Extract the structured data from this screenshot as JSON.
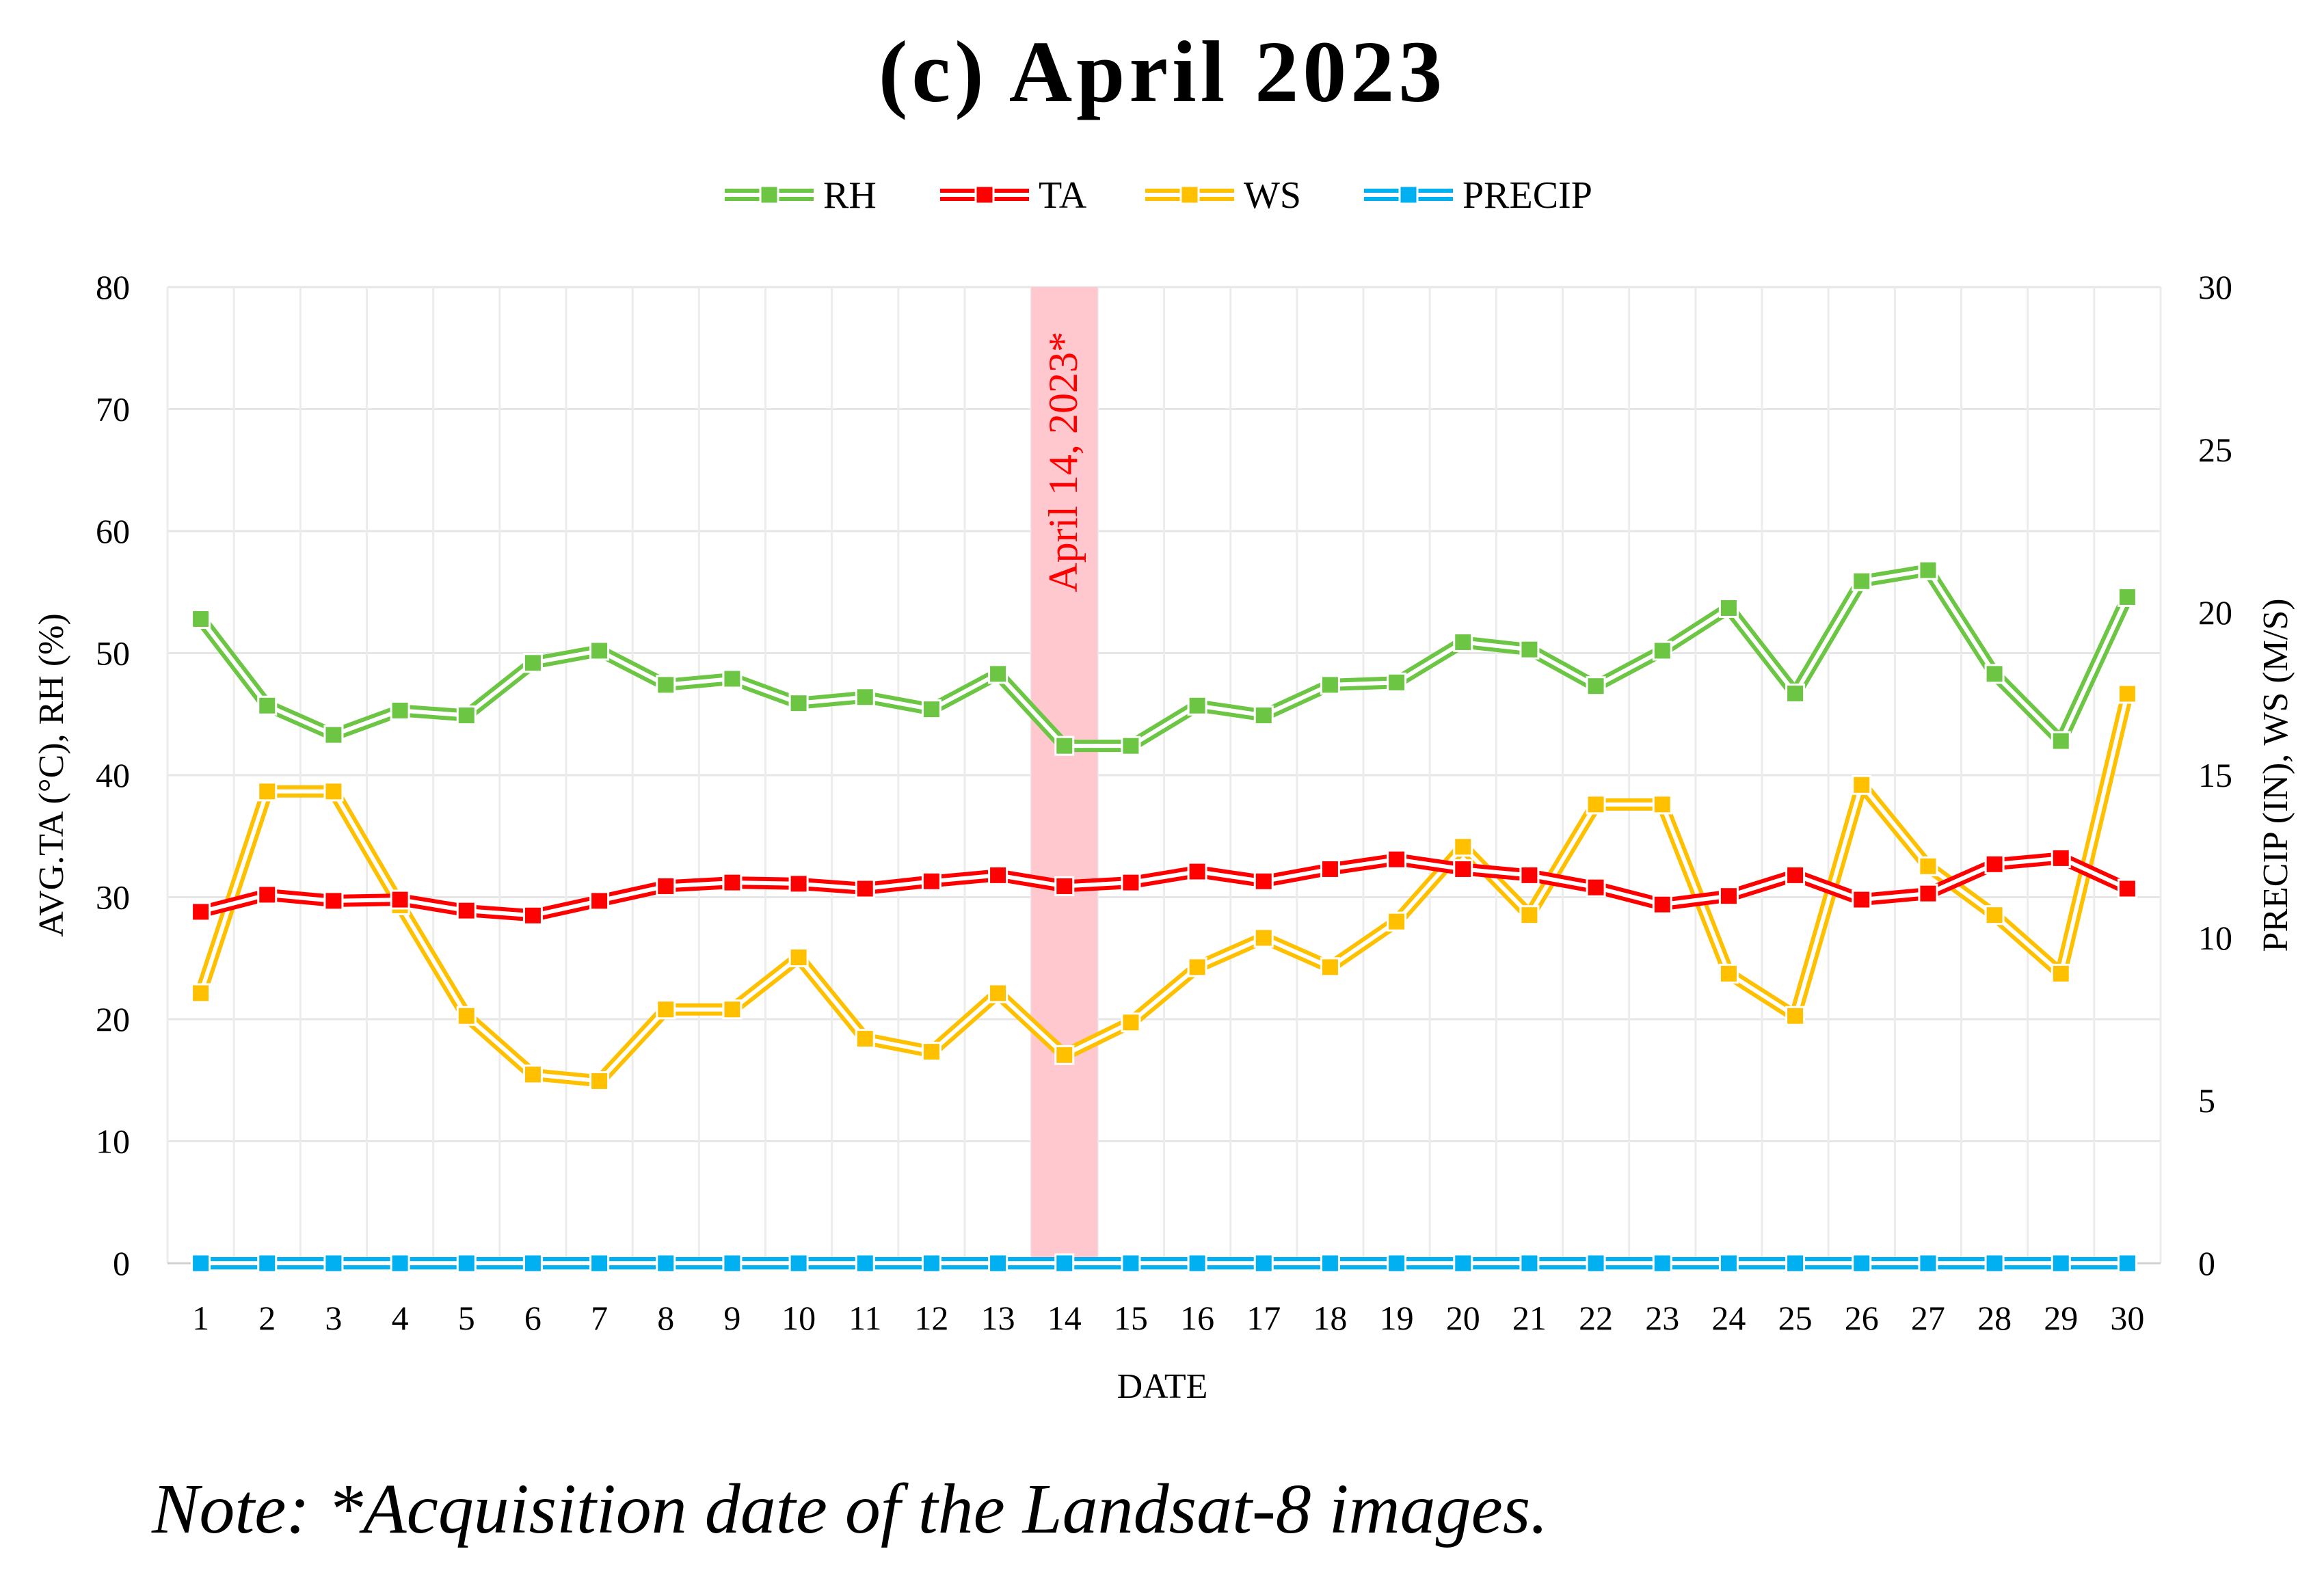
{
  "chart_data": {
    "type": "line",
    "title": "(c) April 2023",
    "xlabel": "DATE",
    "ylabel_left": "AVG.TA (°C), RH (%)",
    "ylabel_right": "PRECIP (IN),  WS (M/S)",
    "ylim_left": [
      0,
      80
    ],
    "ylim_right": [
      0,
      30
    ],
    "yticks_left": [
      0,
      10,
      20,
      30,
      40,
      50,
      60,
      70,
      80
    ],
    "yticks_right": [
      0,
      5,
      10,
      15,
      20,
      25,
      30
    ],
    "categories": [
      1,
      2,
      3,
      4,
      5,
      6,
      7,
      8,
      9,
      10,
      11,
      12,
      13,
      14,
      15,
      16,
      17,
      18,
      19,
      20,
      21,
      22,
      23,
      24,
      25,
      26,
      27,
      28,
      29,
      30
    ],
    "grid": true,
    "legend_position": "top",
    "series": [
      {
        "name": "RH",
        "axis": "left",
        "color": "#6cc644",
        "values": [
          52.8,
          45.7,
          43.3,
          45.3,
          44.9,
          49.2,
          50.2,
          47.4,
          47.9,
          45.9,
          46.4,
          45.4,
          48.3,
          42.4,
          42.4,
          45.7,
          44.9,
          47.4,
          47.6,
          50.9,
          50.3,
          47.3,
          50.2,
          53.7,
          46.7,
          55.9,
          56.8,
          48.3,
          42.8,
          54.6
        ]
      },
      {
        "name": "TA",
        "axis": "left",
        "color": "#ff0000",
        "values": [
          28.8,
          30.2,
          29.7,
          29.8,
          28.9,
          28.5,
          29.7,
          30.9,
          31.2,
          31.1,
          30.7,
          31.3,
          31.8,
          30.9,
          31.2,
          32.1,
          31.3,
          32.3,
          33.1,
          32.3,
          31.8,
          30.8,
          29.4,
          30.1,
          31.8,
          29.8,
          30.3,
          32.7,
          33.2,
          30.7
        ]
      },
      {
        "name": "WS",
        "axis": "right",
        "color": "#ffc000",
        "values": [
          8.3,
          14.5,
          14.5,
          11.0,
          7.6,
          5.8,
          5.6,
          7.8,
          7.8,
          9.4,
          6.9,
          6.5,
          8.3,
          6.4,
          7.4,
          9.1,
          10.0,
          9.1,
          10.5,
          12.8,
          10.7,
          14.1,
          14.1,
          8.9,
          7.6,
          14.7,
          12.2,
          10.7,
          8.9,
          17.5
        ]
      },
      {
        "name": "PRECIP",
        "axis": "right",
        "color": "#00b0f0",
        "values": [
          0,
          0,
          0,
          0,
          0,
          0,
          0,
          0,
          0,
          0,
          0,
          0,
          0,
          0,
          0,
          0,
          0,
          0,
          0,
          0,
          0,
          0,
          0,
          0,
          0,
          0,
          0,
          0,
          0,
          0
        ]
      }
    ],
    "highlight": {
      "category": 14,
      "label": "April 14, 2023*",
      "color": "#ffc7ce"
    },
    "note": "Note: *Acquisition date of the Landsat-8 images."
  }
}
